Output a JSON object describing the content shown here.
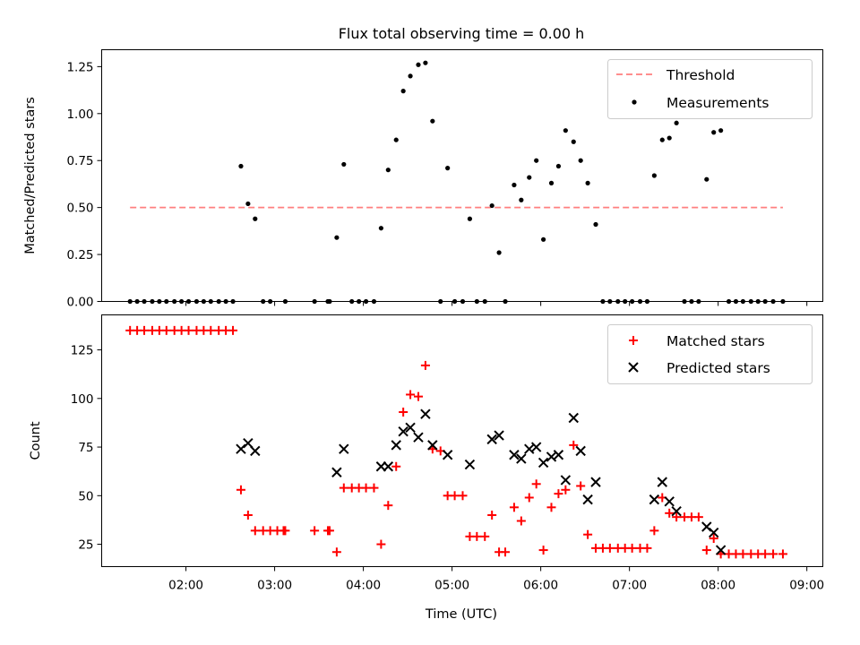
{
  "title": "Flux total observing time = 0.00 h",
  "colors": {
    "threshold": "#ff7f7f",
    "measurement": "#000000",
    "matched": "#ff0000",
    "predicted": "#000000"
  },
  "chart_data": [
    {
      "type": "scatter",
      "ylabel": "Matched/Predicted stars",
      "xlim": [
        1.05,
        9.18
      ],
      "ylim": [
        0,
        1.34
      ],
      "yticks": [
        0.0,
        0.25,
        0.5,
        0.75,
        1.0,
        1.25
      ],
      "ytick_labels": [
        "0.00",
        "0.25",
        "0.50",
        "0.75",
        "1.00",
        "1.25"
      ],
      "legend": {
        "position": "top-right"
      },
      "series": [
        {
          "name": "Threshold",
          "kind": "dashed-line",
          "x": [
            1.37,
            8.73
          ],
          "y": [
            0.5,
            0.5
          ]
        },
        {
          "name": "Measurements",
          "kind": "dot",
          "points": [
            [
              1.37,
              0
            ],
            [
              1.45,
              0
            ],
            [
              1.53,
              0
            ],
            [
              1.62,
              0
            ],
            [
              1.7,
              0
            ],
            [
              1.78,
              0
            ],
            [
              1.87,
              0
            ],
            [
              1.95,
              0
            ],
            [
              2.03,
              0
            ],
            [
              2.12,
              0
            ],
            [
              2.2,
              0
            ],
            [
              2.28,
              0
            ],
            [
              2.37,
              0
            ],
            [
              2.45,
              0
            ],
            [
              2.53,
              0
            ],
            [
              2.62,
              0.72
            ],
            [
              2.7,
              0.52
            ],
            [
              2.78,
              0.44
            ],
            [
              2.87,
              0
            ],
            [
              2.95,
              0
            ],
            [
              3.12,
              0
            ],
            [
              3.45,
              0
            ],
            [
              3.6,
              0
            ],
            [
              3.62,
              0
            ],
            [
              3.7,
              0.34
            ],
            [
              3.78,
              0.73
            ],
            [
              3.87,
              0
            ],
            [
              3.95,
              0
            ],
            [
              4.03,
              0
            ],
            [
              4.12,
              0
            ],
            [
              4.2,
              0.39
            ],
            [
              4.28,
              0.7
            ],
            [
              4.37,
              0.86
            ],
            [
              4.45,
              1.12
            ],
            [
              4.53,
              1.2
            ],
            [
              4.62,
              1.26
            ],
            [
              4.7,
              1.27
            ],
            [
              4.78,
              0.96
            ],
            [
              4.87,
              0
            ],
            [
              4.95,
              0.71
            ],
            [
              5.03,
              0
            ],
            [
              5.12,
              0
            ],
            [
              5.2,
              0.44
            ],
            [
              5.28,
              0
            ],
            [
              5.37,
              0
            ],
            [
              5.45,
              0.51
            ],
            [
              5.53,
              0.26
            ],
            [
              5.6,
              0
            ],
            [
              5.7,
              0.62
            ],
            [
              5.78,
              0.54
            ],
            [
              5.87,
              0.66
            ],
            [
              5.95,
              0.75
            ],
            [
              6.03,
              0.33
            ],
            [
              6.12,
              0.63
            ],
            [
              6.2,
              0.72
            ],
            [
              6.28,
              0.91
            ],
            [
              6.37,
              0.85
            ],
            [
              6.45,
              0.75
            ],
            [
              6.53,
              0.63
            ],
            [
              6.62,
              0.41
            ],
            [
              6.7,
              0
            ],
            [
              6.78,
              0
            ],
            [
              6.87,
              0
            ],
            [
              6.95,
              0
            ],
            [
              7.03,
              0
            ],
            [
              7.12,
              0
            ],
            [
              7.2,
              0
            ],
            [
              7.28,
              0.67
            ],
            [
              7.37,
              0.86
            ],
            [
              7.45,
              0.87
            ],
            [
              7.53,
              0.95
            ],
            [
              7.62,
              0
            ],
            [
              7.7,
              0
            ],
            [
              7.78,
              0
            ],
            [
              7.87,
              0.65
            ],
            [
              7.95,
              0.9
            ],
            [
              8.03,
              0.91
            ],
            [
              8.12,
              0
            ],
            [
              8.2,
              0
            ],
            [
              8.28,
              0
            ],
            [
              8.37,
              0
            ],
            [
              8.45,
              0
            ],
            [
              8.53,
              0
            ],
            [
              8.62,
              0
            ],
            [
              8.73,
              0
            ]
          ]
        }
      ]
    },
    {
      "type": "scatter",
      "xlabel": "Time (UTC)",
      "ylabel": "Count",
      "xlim": [
        1.05,
        9.18
      ],
      "ylim": [
        13.5,
        143
      ],
      "yticks": [
        25,
        50,
        75,
        100,
        125
      ],
      "ytick_labels": [
        "25",
        "50",
        "75",
        "100",
        "125"
      ],
      "xticks": [
        2,
        3,
        4,
        5,
        6,
        7,
        8,
        9
      ],
      "xtick_labels": [
        "02:00",
        "03:00",
        "04:00",
        "05:00",
        "06:00",
        "07:00",
        "08:00",
        "09:00"
      ],
      "legend": {
        "position": "top-right"
      },
      "series": [
        {
          "name": "Matched stars",
          "marker": "plus",
          "points": [
            [
              1.37,
              135
            ],
            [
              1.45,
              135
            ],
            [
              1.53,
              135
            ],
            [
              1.62,
              135
            ],
            [
              1.7,
              135
            ],
            [
              1.78,
              135
            ],
            [
              1.87,
              135
            ],
            [
              1.95,
              135
            ],
            [
              2.03,
              135
            ],
            [
              2.12,
              135
            ],
            [
              2.2,
              135
            ],
            [
              2.28,
              135
            ],
            [
              2.37,
              135
            ],
            [
              2.45,
              135
            ],
            [
              2.53,
              135
            ],
            [
              2.62,
              53
            ],
            [
              2.7,
              40
            ],
            [
              2.78,
              32
            ],
            [
              2.87,
              32
            ],
            [
              2.95,
              32
            ],
            [
              3.03,
              32
            ],
            [
              3.1,
              32
            ],
            [
              3.12,
              32
            ],
            [
              3.45,
              32
            ],
            [
              3.6,
              32
            ],
            [
              3.62,
              32
            ],
            [
              3.7,
              21
            ],
            [
              3.78,
              54
            ],
            [
              3.87,
              54
            ],
            [
              3.95,
              54
            ],
            [
              4.03,
              54
            ],
            [
              4.12,
              54
            ],
            [
              4.2,
              25
            ],
            [
              4.28,
              45
            ],
            [
              4.37,
              65
            ],
            [
              4.45,
              93
            ],
            [
              4.53,
              102
            ],
            [
              4.62,
              101
            ],
            [
              4.7,
              117
            ],
            [
              4.78,
              74
            ],
            [
              4.87,
              73
            ],
            [
              4.95,
              50
            ],
            [
              5.03,
              50
            ],
            [
              5.12,
              50
            ],
            [
              5.2,
              29
            ],
            [
              5.28,
              29
            ],
            [
              5.37,
              29
            ],
            [
              5.45,
              40
            ],
            [
              5.53,
              21
            ],
            [
              5.6,
              21
            ],
            [
              5.7,
              44
            ],
            [
              5.78,
              37
            ],
            [
              5.87,
              49
            ],
            [
              5.95,
              56
            ],
            [
              6.03,
              22
            ],
            [
              6.12,
              44
            ],
            [
              6.2,
              51
            ],
            [
              6.28,
              53
            ],
            [
              6.37,
              76
            ],
            [
              6.45,
              55
            ],
            [
              6.53,
              30
            ],
            [
              6.62,
              23
            ],
            [
              6.7,
              23
            ],
            [
              6.78,
              23
            ],
            [
              6.87,
              23
            ],
            [
              6.95,
              23
            ],
            [
              7.03,
              23
            ],
            [
              7.12,
              23
            ],
            [
              7.2,
              23
            ],
            [
              7.28,
              32
            ],
            [
              7.37,
              49
            ],
            [
              7.45,
              41
            ],
            [
              7.53,
              39
            ],
            [
              7.62,
              39
            ],
            [
              7.7,
              39
            ],
            [
              7.78,
              39
            ],
            [
              7.87,
              22
            ],
            [
              7.95,
              28
            ],
            [
              8.03,
              20
            ],
            [
              8.12,
              20
            ],
            [
              8.2,
              20
            ],
            [
              8.28,
              20
            ],
            [
              8.37,
              20
            ],
            [
              8.45,
              20
            ],
            [
              8.53,
              20
            ],
            [
              8.62,
              20
            ],
            [
              8.73,
              20
            ]
          ]
        },
        {
          "name": "Predicted stars",
          "marker": "x",
          "points": [
            [
              2.62,
              74
            ],
            [
              2.7,
              77
            ],
            [
              2.78,
              73
            ],
            [
              3.7,
              62
            ],
            [
              3.78,
              74
            ],
            [
              4.2,
              65
            ],
            [
              4.28,
              65
            ],
            [
              4.37,
              76
            ],
            [
              4.45,
              83
            ],
            [
              4.53,
              85
            ],
            [
              4.62,
              80
            ],
            [
              4.7,
              92
            ],
            [
              4.78,
              76
            ],
            [
              4.95,
              71
            ],
            [
              5.2,
              66
            ],
            [
              5.45,
              79
            ],
            [
              5.53,
              81
            ],
            [
              5.7,
              71
            ],
            [
              5.78,
              69
            ],
            [
              5.87,
              74
            ],
            [
              5.95,
              75
            ],
            [
              6.03,
              67
            ],
            [
              6.12,
              70
            ],
            [
              6.2,
              71
            ],
            [
              6.28,
              58
            ],
            [
              6.37,
              90
            ],
            [
              6.45,
              73
            ],
            [
              6.53,
              48
            ],
            [
              6.62,
              57
            ],
            [
              7.28,
              48
            ],
            [
              7.37,
              57
            ],
            [
              7.45,
              47
            ],
            [
              7.53,
              42
            ],
            [
              7.87,
              34
            ],
            [
              7.95,
              31
            ],
            [
              8.03,
              22
            ]
          ]
        }
      ]
    }
  ]
}
